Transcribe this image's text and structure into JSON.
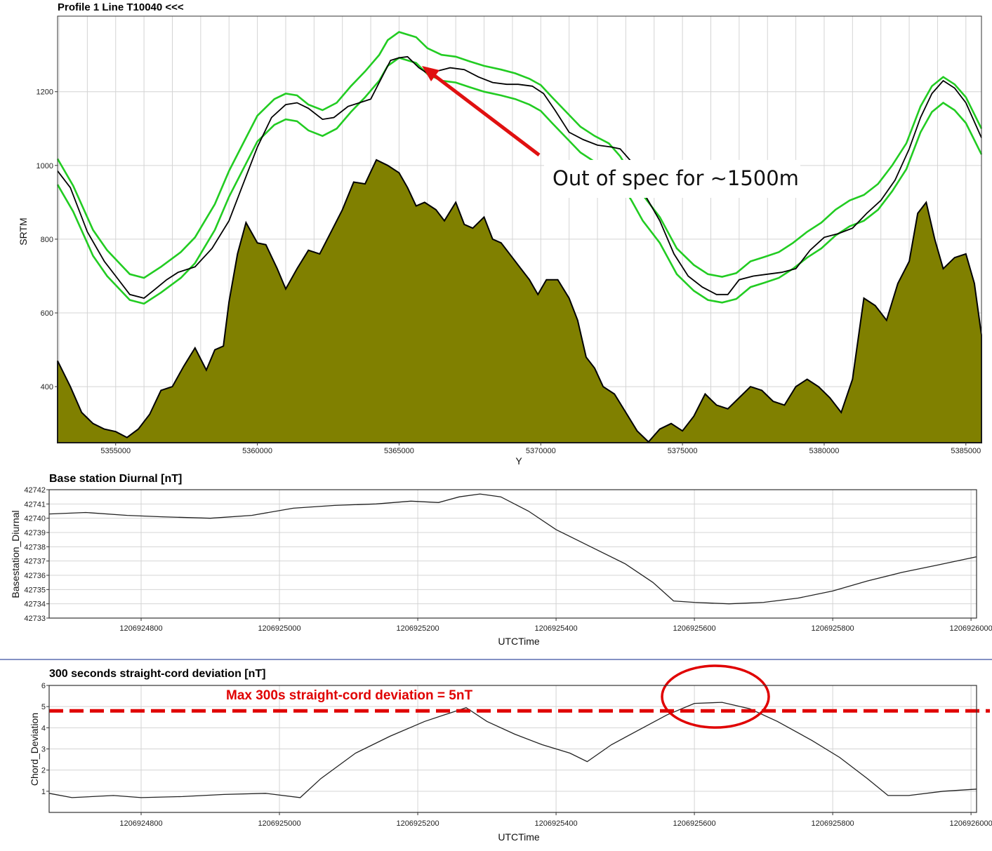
{
  "colors": {
    "terrain_fill": "#808000",
    "envelope": "#22cc22",
    "trace": "#000000",
    "annotation_red": "#e01010",
    "grid": "#c8c8c8",
    "divider_blue": "#3a4fa0"
  },
  "chart_data": [
    {
      "id": "profile",
      "type": "area",
      "title": "Profile 1   Line T10040 <<<",
      "xlabel": "Y",
      "ylabel": "SRTM",
      "xlim": [
        5352950,
        5385550
      ],
      "ylim": [
        248,
        1405
      ],
      "xticks": [
        5355000,
        5360000,
        5365000,
        5370000,
        5375000,
        5380000,
        5385000
      ],
      "xtick_labels": [
        "5355000",
        "5360000",
        "5365000",
        "5370000",
        "5375000",
        "5380000",
        "5385000"
      ],
      "yticks": [
        400,
        600,
        800,
        1000,
        1200
      ],
      "ytick_labels": [
        "400",
        "600",
        "800",
        "1000",
        "1200"
      ],
      "grid": true,
      "series": [
        {
          "kind": "terrain-area",
          "x": [
            5352950,
            5353400,
            5353800,
            5354200,
            5354600,
            5355000,
            5355400,
            5355800,
            5356200,
            5356600,
            5357000,
            5357400,
            5357800,
            5358200,
            5358500,
            5358800,
            5359000,
            5359300,
            5359600,
            5360000,
            5360300,
            5360700,
            5361000,
            5361400,
            5361800,
            5362200,
            5362600,
            5363000,
            5363400,
            5363800,
            5364200,
            5364600,
            5365000,
            5365300,
            5365600,
            5365900,
            5366300,
            5366600,
            5367000,
            5367300,
            5367600,
            5368000,
            5368300,
            5368600,
            5369000,
            5369300,
            5369600,
            5369900,
            5370200,
            5370600,
            5371000,
            5371300,
            5371600,
            5371900,
            5372200,
            5372600,
            5373000,
            5373400,
            5373800,
            5374200,
            5374600,
            5375000,
            5375400,
            5375800,
            5376200,
            5376600,
            5377000,
            5377400,
            5377800,
            5378200,
            5378600,
            5379000,
            5379400,
            5379800,
            5380200,
            5380600,
            5381000,
            5381400,
            5381800,
            5382200,
            5382600,
            5383000,
            5383300,
            5383600,
            5383900,
            5384200,
            5384600,
            5385000,
            5385300,
            5385550
          ],
          "y": [
            470,
            400,
            330,
            300,
            285,
            278,
            262,
            285,
            325,
            390,
            400,
            455,
            505,
            445,
            500,
            510,
            630,
            760,
            845,
            790,
            785,
            720,
            665,
            720,
            770,
            760,
            820,
            880,
            955,
            950,
            1015,
            1000,
            980,
            940,
            890,
            900,
            880,
            850,
            900,
            840,
            830,
            860,
            800,
            790,
            750,
            720,
            690,
            650,
            690,
            690,
            640,
            580,
            480,
            450,
            400,
            380,
            330,
            280,
            250,
            285,
            300,
            280,
            320,
            380,
            350,
            340,
            370,
            400,
            390,
            360,
            350,
            400,
            420,
            400,
            370,
            330,
            420,
            640,
            620,
            580,
            680,
            740,
            870,
            900,
            800,
            720,
            750,
            760,
            680,
            540
          ]
        },
        {
          "kind": "envelope",
          "name": "",
          "x": [
            5352950,
            5353500,
            5354200,
            5354700,
            5355500,
            5356000,
            5356600,
            5357300,
            5357800,
            5358500,
            5359000,
            5359600,
            5360000,
            5360600,
            5361000,
            5361400,
            5361800,
            5362300,
            5362800,
            5363300,
            5363800,
            5364300,
            5364600,
            5365000,
            5365600,
            5366000,
            5366500,
            5367000,
            5367500,
            5368000,
            5368600,
            5369100,
            5369600,
            5370000,
            5370400,
            5370900,
            5371400,
            5371900,
            5372400,
            5372800,
            5373200,
            5373600,
            5374200,
            5374800,
            5375400,
            5375900,
            5376400,
            5376900,
            5377400,
            5377900,
            5378400,
            5378900,
            5379400,
            5379900,
            5380400,
            5380900,
            5381400,
            5381900,
            5382400,
            5382900,
            5383400,
            5383800,
            5384200,
            5384600,
            5385000,
            5385550
          ],
          "y": [
            1018,
            945,
            825,
            770,
            705,
            695,
            725,
            765,
            805,
            895,
            985,
            1075,
            1135,
            1180,
            1195,
            1190,
            1165,
            1150,
            1170,
            1215,
            1255,
            1300,
            1340,
            1362,
            1348,
            1318,
            1300,
            1295,
            1282,
            1270,
            1260,
            1250,
            1235,
            1218,
            1185,
            1145,
            1105,
            1080,
            1060,
            1025,
            975,
            920,
            860,
            775,
            730,
            705,
            698,
            708,
            740,
            752,
            765,
            790,
            820,
            845,
            880,
            905,
            920,
            950,
            1000,
            1060,
            1160,
            1215,
            1240,
            1220,
            1185,
            1100
          ]
        },
        {
          "kind": "envelope",
          "name": "",
          "x": [
            5352950,
            5353500,
            5354200,
            5354700,
            5355500,
            5356000,
            5356600,
            5357300,
            5357800,
            5358500,
            5359000,
            5359600,
            5360000,
            5360600,
            5361000,
            5361400,
            5361800,
            5362300,
            5362800,
            5363300,
            5363800,
            5364300,
            5364600,
            5365000,
            5365600,
            5366000,
            5366500,
            5367000,
            5367500,
            5368000,
            5368600,
            5369100,
            5369600,
            5370000,
            5370400,
            5370900,
            5371400,
            5371900,
            5372400,
            5372800,
            5373200,
            5373600,
            5374200,
            5374800,
            5375400,
            5375900,
            5376400,
            5376900,
            5377400,
            5377900,
            5378400,
            5378900,
            5379400,
            5379900,
            5380400,
            5380900,
            5381400,
            5381900,
            5382400,
            5382900,
            5383400,
            5383800,
            5384200,
            5384600,
            5385000,
            5385550
          ],
          "y": [
            948,
            875,
            755,
            700,
            635,
            625,
            655,
            695,
            735,
            825,
            915,
            1005,
            1065,
            1110,
            1125,
            1120,
            1095,
            1080,
            1100,
            1145,
            1185,
            1230,
            1270,
            1292,
            1278,
            1248,
            1230,
            1225,
            1212,
            1200,
            1190,
            1180,
            1165,
            1148,
            1115,
            1075,
            1035,
            1010,
            990,
            955,
            905,
            850,
            790,
            705,
            660,
            635,
            628,
            638,
            670,
            682,
            695,
            720,
            750,
            775,
            810,
            835,
            850,
            880,
            930,
            990,
            1090,
            1145,
            1170,
            1150,
            1115,
            1030
          ]
        },
        {
          "kind": "trace",
          "name": "",
          "x": [
            5352950,
            5353400,
            5354000,
            5354600,
            5355000,
            5355500,
            5356000,
            5356400,
            5356800,
            5357200,
            5357800,
            5358400,
            5359000,
            5359500,
            5360000,
            5360500,
            5361000,
            5361400,
            5361800,
            5362300,
            5362700,
            5363200,
            5363600,
            5364000,
            5364400,
            5364700,
            5365000,
            5365300,
            5365700,
            5366000,
            5366300,
            5366800,
            5367300,
            5367800,
            5368300,
            5368800,
            5369200,
            5369700,
            5370100,
            5370500,
            5371000,
            5371500,
            5372000,
            5372500,
            5372800,
            5373200,
            5373600,
            5374200,
            5374700,
            5375200,
            5375700,
            5376200,
            5376600,
            5377000,
            5377500,
            5378000,
            5378500,
            5379000,
            5379500,
            5380000,
            5380500,
            5381000,
            5381500,
            5382000,
            5382500,
            5383000,
            5383400,
            5383800,
            5384200,
            5384600,
            5385000,
            5385550
          ],
          "y": [
            985,
            940,
            820,
            740,
            700,
            650,
            640,
            665,
            690,
            710,
            725,
            775,
            850,
            950,
            1050,
            1130,
            1165,
            1170,
            1155,
            1125,
            1130,
            1160,
            1170,
            1180,
            1240,
            1285,
            1292,
            1295,
            1265,
            1250,
            1255,
            1265,
            1260,
            1240,
            1225,
            1220,
            1220,
            1215,
            1195,
            1150,
            1090,
            1070,
            1055,
            1050,
            1045,
            1010,
            930,
            850,
            760,
            700,
            670,
            650,
            650,
            690,
            700,
            705,
            710,
            720,
            770,
            805,
            815,
            830,
            870,
            905,
            960,
            1045,
            1130,
            1195,
            1230,
            1210,
            1170,
            1075
          ]
        }
      ],
      "annotations": [
        {
          "type": "arrow",
          "text": ""
        },
        {
          "type": "label",
          "text": "Out of spec for ~1500m"
        }
      ]
    },
    {
      "id": "diurnal",
      "type": "line",
      "title": "Base station Diurnal [nT]",
      "xlabel": "UTCTime",
      "ylabel": "Basestation_Diurnal",
      "xlim": [
        1206924667,
        1206926008
      ],
      "ylim": [
        42733,
        42742
      ],
      "xticks": [
        1206924800,
        1206925000,
        1206925200,
        1206925400,
        1206925600,
        1206925800,
        1206926000
      ],
      "xtick_labels": [
        "1206924800",
        "1206925000",
        "1206925200",
        "1206925400",
        "1206925600",
        "1206925800",
        "1206926000"
      ],
      "yticks": [
        42733,
        42734,
        42735,
        42736,
        42737,
        42738,
        42739,
        42740,
        42741,
        42742
      ],
      "ytick_labels": [
        "42733",
        "42734",
        "42735",
        "42736",
        "42737",
        "42738",
        "42739",
        "42740",
        "42741",
        "42742"
      ],
      "grid": true,
      "series": [
        {
          "name": "",
          "x": [
            1206924667,
            1206924720,
            1206924780,
            1206924830,
            1206924900,
            1206924960,
            1206925020,
            1206925080,
            1206925140,
            1206925190,
            1206925230,
            1206925260,
            1206925290,
            1206925320,
            1206925360,
            1206925400,
            1206925450,
            1206925500,
            1206925540,
            1206925570,
            1206925600,
            1206925650,
            1206925700,
            1206925750,
            1206925800,
            1206925850,
            1206925900,
            1206925950,
            1206926008
          ],
          "y": [
            42740.3,
            42740.4,
            42740.2,
            42740.1,
            42740.0,
            42740.2,
            42740.7,
            42740.9,
            42741.0,
            42741.2,
            42741.1,
            42741.5,
            42741.7,
            42741.5,
            42740.5,
            42739.2,
            42738.0,
            42736.8,
            42735.5,
            42734.2,
            42734.1,
            42734.0,
            42734.1,
            42734.4,
            42734.9,
            42735.6,
            42736.2,
            42736.7,
            42737.3
          ]
        }
      ]
    },
    {
      "id": "chord",
      "type": "line",
      "title": "300 seconds straight-cord deviation [nT]",
      "xlabel": "UTCTime",
      "ylabel": "Chord_Deviation",
      "xlim": [
        1206924667,
        1206926008
      ],
      "ylim": [
        0,
        6
      ],
      "xticks": [
        1206924800,
        1206925000,
        1206925200,
        1206925400,
        1206925600,
        1206925800,
        1206926000
      ],
      "xtick_labels": [
        "1206924800",
        "1206925000",
        "1206925200",
        "1206925400",
        "1206925600",
        "1206925800",
        "1206926000"
      ],
      "yticks": [
        1,
        2,
        3,
        4,
        5,
        6
      ],
      "ytick_labels": [
        "1",
        "2",
        "3",
        "4",
        "5",
        "6"
      ],
      "grid": true,
      "series": [
        {
          "name": "",
          "x": [
            1206924667,
            1206924700,
            1206924760,
            1206924800,
            1206924860,
            1206924920,
            1206924980,
            1206925030,
            1206925060,
            1206925110,
            1206925160,
            1206925210,
            1206925270,
            1206925300,
            1206925340,
            1206925380,
            1206925420,
            1206925445,
            1206925480,
            1206925520,
            1206925560,
            1206925600,
            1206925640,
            1206925680,
            1206925720,
            1206925770,
            1206925810,
            1206925850,
            1206925880,
            1206925910,
            1206925960,
            1206926008
          ],
          "y": [
            0.9,
            0.7,
            0.8,
            0.7,
            0.75,
            0.85,
            0.9,
            0.7,
            1.6,
            2.8,
            3.6,
            4.3,
            4.95,
            4.3,
            3.7,
            3.2,
            2.8,
            2.4,
            3.2,
            3.9,
            4.6,
            5.15,
            5.2,
            4.9,
            4.3,
            3.4,
            2.6,
            1.6,
            0.8,
            0.8,
            1.0,
            1.1
          ]
        }
      ],
      "threshold": {
        "value": 4.8,
        "label": "Max 300s straight-cord deviation = 5nT"
      },
      "highlight": {
        "type": "ellipse",
        "text": ""
      }
    }
  ]
}
